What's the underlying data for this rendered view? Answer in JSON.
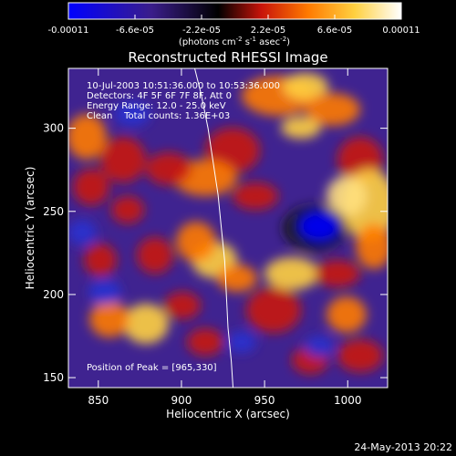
{
  "colorbar": {
    "tick_labels": [
      "-0.00011",
      "-6.6e-05",
      "-2.2e-05",
      "2.2e-05",
      "6.6e-05",
      "0.00011"
    ],
    "min": -0.00011,
    "max": 0.00011,
    "units_prefix": "(photons cm",
    "units_exp1": "-2",
    "units_mid": " s",
    "units_exp2": "-1",
    "units_mid2": " asec",
    "units_exp3": "-2",
    "units_suffix": ")",
    "colors": [
      "#0000ff",
      "#3a1d8a",
      "#000000",
      "#c8140a",
      "#ff7a00",
      "#ffd040",
      "#ffffff"
    ]
  },
  "chart_data": {
    "type": "heatmap",
    "title": "Reconstructed RHESSI Image",
    "xlabel": "Heliocentric X (arcsec)",
    "ylabel": "Heliocentric Y (arcsec)",
    "xlim": [
      832,
      1024
    ],
    "ylim": [
      144,
      336
    ],
    "x_ticks": [
      850,
      900,
      950,
      1000
    ],
    "y_ticks": [
      150,
      200,
      250,
      300
    ],
    "peak": [
      965,
      330
    ],
    "limb_curve": [
      [
        908,
        336
      ],
      [
        912,
        320
      ],
      [
        916,
        300
      ],
      [
        919,
        280
      ],
      [
        922,
        260
      ],
      [
        924,
        240
      ],
      [
        926,
        220
      ],
      [
        927,
        200
      ],
      [
        928,
        180
      ],
      [
        930,
        160
      ],
      [
        931,
        144
      ]
    ],
    "annotations": [
      "10-Jul-2003 10:51:36.000 to 10:53:36.000",
      "Detectors: 4F 5F 6F 7F 8F, Att 0",
      "Energy Range: 12.0 - 25.0 keV",
      "Clean    Total counts: 1.36E+03"
    ],
    "peak_label": "Position of Peak = [965,330]"
  },
  "footer": {
    "date": "24-May-2013 20:22"
  }
}
